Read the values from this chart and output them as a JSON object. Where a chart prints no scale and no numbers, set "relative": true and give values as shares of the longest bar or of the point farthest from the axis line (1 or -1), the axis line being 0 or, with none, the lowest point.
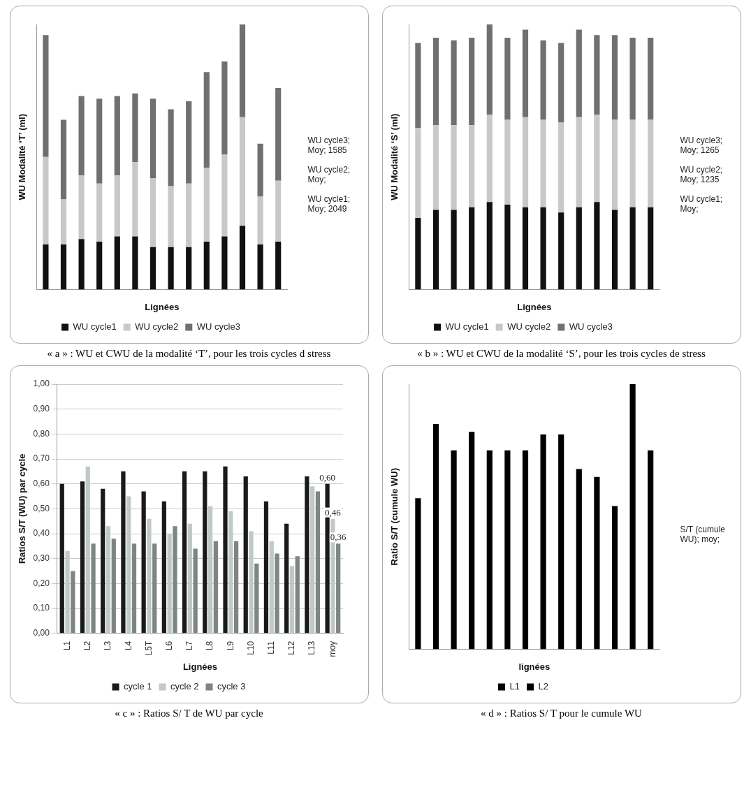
{
  "chart_data": [
    {
      "type": "bar",
      "title": "« a » : WU et CWU de la modalité ‘T’, pour les trois cycles d stress",
      "xlabel": "Lignées",
      "ylabel": "WU Modalité ‘T’ (ml)",
      "relative": true,
      "stacked": true,
      "legend": "bottom",
      "categories": [
        null,
        null,
        null,
        null,
        null,
        null,
        null,
        null,
        null,
        null,
        null,
        null,
        null,
        null
      ],
      "series": [
        {
          "name": "WU cycle1",
          "color": "#111111",
          "values": [
            0.17,
            0.17,
            0.19,
            0.18,
            0.2,
            0.2,
            0.16,
            0.16,
            0.16,
            0.18,
            0.2,
            0.24,
            0.17,
            0.18
          ]
        },
        {
          "name": "WU cycle2",
          "color": "#c8c8c8",
          "values": [
            0.33,
            0.17,
            0.24,
            0.22,
            0.23,
            0.28,
            0.26,
            0.23,
            0.24,
            0.28,
            0.31,
            0.41,
            0.18,
            0.23
          ]
        },
        {
          "name": "WU cycle3",
          "color": "#707070",
          "values": [
            0.46,
            0.3,
            0.3,
            0.32,
            0.3,
            0.26,
            0.3,
            0.29,
            0.31,
            0.36,
            0.35,
            0.35,
            0.2,
            0.35
          ]
        }
      ],
      "annotations": [
        "WU cycle3; Moy; 1585",
        "WU cycle2; Moy;",
        "WU cycle1; Moy; 2049"
      ]
    },
    {
      "type": "bar",
      "title": "« b » : WU et CWU de la modalité ‘S’, pour les trois cycles de stress",
      "xlabel": "Lignées",
      "ylabel": "WU Modalité ‘S’ (ml)",
      "relative": true,
      "stacked": true,
      "legend": "bottom",
      "categories": [
        null,
        null,
        null,
        null,
        null,
        null,
        null,
        null,
        null,
        null,
        null,
        null,
        null,
        null
      ],
      "series": [
        {
          "name": "WU cycle1",
          "color": "#111111",
          "values": [
            0.27,
            0.3,
            0.3,
            0.31,
            0.33,
            0.32,
            0.31,
            0.31,
            0.29,
            0.31,
            0.33,
            0.3,
            0.31,
            0.31
          ]
        },
        {
          "name": "WU cycle2",
          "color": "#c8c8c8",
          "values": [
            0.34,
            0.32,
            0.32,
            0.31,
            0.33,
            0.32,
            0.34,
            0.33,
            0.34,
            0.34,
            0.33,
            0.34,
            0.33,
            0.33
          ]
        },
        {
          "name": "WU cycle3",
          "color": "#707070",
          "values": [
            0.32,
            0.33,
            0.32,
            0.33,
            0.34,
            0.31,
            0.33,
            0.3,
            0.3,
            0.33,
            0.3,
            0.32,
            0.31,
            0.31
          ]
        }
      ],
      "annotations": [
        "WU cycle3; Moy; 1265",
        "WU cycle2; Moy; 1235",
        "WU cycle1; Moy;"
      ]
    },
    {
      "type": "bar",
      "title": "« c » : Ratios S/ T de WU par cycle",
      "xlabel": "Lignées",
      "ylabel": "Ratios S/T (WU) par cycle",
      "legend": "bottom",
      "grid": "y",
      "categories": [
        "L1",
        "L2",
        "L3",
        "L4",
        "L5T",
        "L6",
        "L7",
        "L8",
        "L9",
        "L10",
        "L11",
        "L12",
        "L13",
        "moy"
      ],
      "ylim": [
        0,
        1
      ],
      "yticks": [
        {
          "value": 0,
          "label": "0,00"
        },
        {
          "value": 0.1,
          "label": "0,10"
        },
        {
          "value": 0.2,
          "label": "0,20"
        },
        {
          "value": 0.3,
          "label": "0,30"
        },
        {
          "value": 0.4,
          "label": "0,40"
        },
        {
          "value": 0.5,
          "label": "0,50"
        },
        {
          "value": 0.6,
          "label": "0,60"
        },
        {
          "value": 0.7,
          "label": "0,70"
        },
        {
          "value": 0.8,
          "label": "0,80"
        },
        {
          "value": 0.9,
          "label": "0,90"
        },
        {
          "value": 1,
          "label": "1,00"
        }
      ],
      "series": [
        {
          "name": "cycle 1",
          "color": "#1a1a1a",
          "values": [
            0.6,
            0.61,
            0.58,
            0.65,
            0.57,
            0.53,
            0.65,
            0.65,
            0.67,
            0.63,
            0.53,
            0.44,
            0.63,
            0.6
          ],
          "value_labels": [
            null,
            null,
            null,
            null,
            null,
            null,
            null,
            null,
            null,
            null,
            null,
            null,
            null,
            "0,60"
          ]
        },
        {
          "name": "cycle 2",
          "color": "#c0c8c8",
          "values": [
            0.33,
            0.67,
            0.43,
            0.55,
            0.46,
            0.4,
            0.44,
            0.51,
            0.49,
            0.41,
            0.37,
            0.27,
            0.59,
            0.46
          ],
          "value_labels": [
            null,
            null,
            null,
            null,
            null,
            null,
            null,
            null,
            null,
            null,
            null,
            null,
            null,
            "0,46"
          ]
        },
        {
          "name": "cycle 3",
          "color": "#7d8585",
          "values": [
            0.25,
            0.36,
            0.38,
            0.36,
            0.36,
            0.43,
            0.34,
            0.37,
            0.37,
            0.28,
            0.32,
            0.31,
            0.57,
            0.36
          ],
          "value_labels": [
            null,
            null,
            null,
            null,
            null,
            null,
            null,
            null,
            null,
            null,
            null,
            null,
            null,
            "0,36"
          ]
        }
      ]
    },
    {
      "type": "bar",
      "title": "« d » : Ratios S/ T pour le cumule WU",
      "xlabel": "lignées",
      "ylabel": "Ratio S/T (cumule WU)",
      "relative": true,
      "legend": "bottom",
      "categories": [
        null,
        null,
        null,
        null,
        null,
        null,
        null,
        null,
        null,
        null,
        null,
        null,
        null,
        null
      ],
      "series": [
        {
          "name": "L1",
          "color": "#000000",
          "values": [
            0.57,
            0.85,
            0.75,
            0.82,
            0.75,
            0.75,
            0.75,
            0.81,
            0.81,
            0.68,
            0.65,
            0.54,
            1,
            0.75
          ]
        },
        {
          "name": "L2",
          "color": "#000000",
          "values": [
            null,
            null,
            null,
            null,
            null,
            null,
            null,
            null,
            null,
            null,
            null,
            null,
            null,
            null
          ]
        }
      ],
      "annotations": [
        "S/T (cumule WU); moy;"
      ]
    }
  ]
}
